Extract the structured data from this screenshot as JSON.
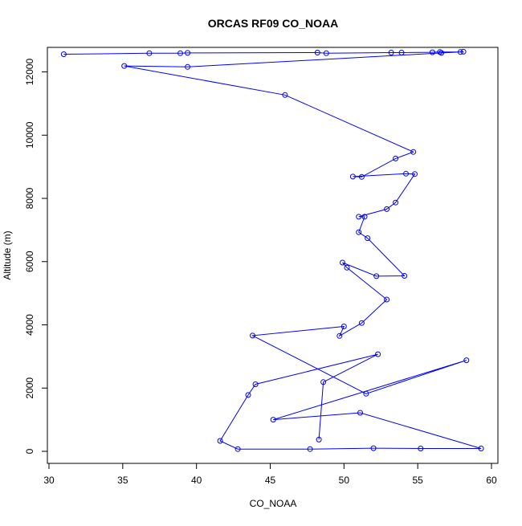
{
  "chart_data": {
    "type": "line",
    "title": "ORCAS RF09 CO_NOAA",
    "xlabel": "CO_NOAA",
    "ylabel": "Altitude (m)",
    "xlim": [
      30,
      60
    ],
    "ylim": [
      0,
      12700
    ],
    "xticks": [
      30,
      35,
      40,
      45,
      50,
      55,
      60
    ],
    "yticks": [
      0,
      2000,
      4000,
      6000,
      8000,
      10000,
      12000
    ],
    "grid": false,
    "legend": "none",
    "series": [
      {
        "color": "#0000ff",
        "marker": "open-circle",
        "points": [
          [
            31.0,
            12560
          ],
          [
            36.8,
            12590
          ],
          [
            38.9,
            12590
          ],
          [
            39.4,
            12600
          ],
          [
            48.2,
            12610
          ],
          [
            48.8,
            12590
          ],
          [
            53.2,
            12610
          ],
          [
            53.9,
            12610
          ],
          [
            56.0,
            12620
          ],
          [
            56.5,
            12630
          ],
          [
            57.9,
            12630
          ],
          [
            56.6,
            12600
          ],
          [
            58.1,
            12640
          ],
          [
            39.4,
            12160
          ],
          [
            35.1,
            12190
          ],
          [
            46.0,
            11270
          ],
          [
            54.7,
            9470
          ],
          [
            53.5,
            9260
          ],
          [
            51.2,
            8680
          ],
          [
            50.6,
            8690
          ],
          [
            54.2,
            8780
          ],
          [
            54.8,
            8770
          ],
          [
            53.5,
            7870
          ],
          [
            52.9,
            7660
          ],
          [
            51.0,
            7420
          ],
          [
            51.4,
            7420
          ],
          [
            51.0,
            6930
          ],
          [
            51.6,
            6740
          ],
          [
            54.1,
            5550
          ],
          [
            52.2,
            5540
          ],
          [
            49.9,
            5970
          ],
          [
            50.2,
            5810
          ],
          [
            52.9,
            4800
          ],
          [
            51.2,
            4060
          ],
          [
            49.7,
            3650
          ],
          [
            50.0,
            3950
          ],
          [
            43.8,
            3660
          ],
          [
            51.5,
            1820
          ],
          [
            58.3,
            2880
          ],
          [
            45.2,
            1000
          ],
          [
            51.1,
            1220
          ],
          [
            59.3,
            90
          ],
          [
            55.2,
            90
          ],
          [
            52.0,
            100
          ],
          [
            47.7,
            70
          ],
          [
            42.8,
            70
          ],
          [
            41.6,
            330
          ],
          [
            43.5,
            1780
          ],
          [
            44.0,
            2120
          ],
          [
            52.3,
            3070
          ],
          [
            48.6,
            2190
          ],
          [
            48.3,
            370
          ]
        ]
      }
    ]
  }
}
